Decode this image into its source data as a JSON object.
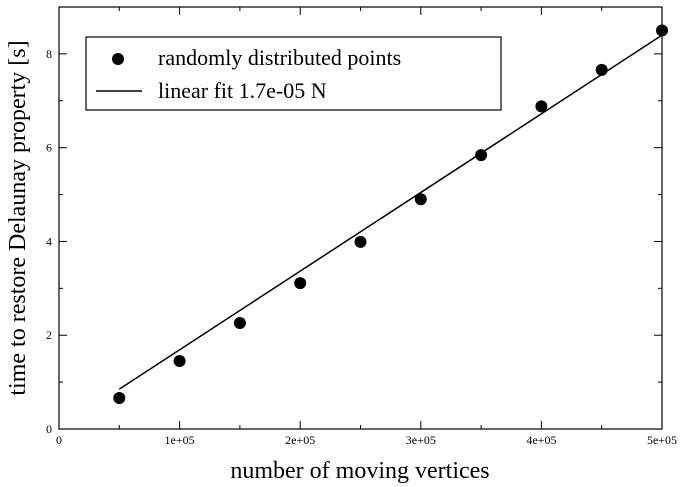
{
  "chart_data": {
    "type": "scatter",
    "xlabel": "number of moving vertices",
    "ylabel": "time to restore Delaunay property [s]",
    "xlim": [
      0,
      500000
    ],
    "ylim": [
      0,
      9
    ],
    "x_ticks": [
      0,
      100000,
      200000,
      300000,
      400000,
      500000
    ],
    "x_tick_labels": [
      "0",
      "1e+05",
      "2e+05",
      "3e+05",
      "4e+05",
      "5e+05"
    ],
    "y_ticks": [
      0,
      2,
      4,
      6,
      8
    ],
    "y_tick_labels": [
      "0",
      "2",
      "4",
      "6",
      "8"
    ],
    "grid": false,
    "legend_position": "top-left",
    "series": [
      {
        "name": "randomly distributed points",
        "kind": "scatter",
        "color": "#000000",
        "x": [
          50000,
          100000,
          150000,
          200000,
          250000,
          300000,
          350000,
          400000,
          450000,
          500000
        ],
        "y": [
          0.66,
          1.45,
          2.26,
          3.11,
          3.99,
          4.9,
          5.84,
          6.88,
          7.66,
          8.5
        ]
      },
      {
        "name": "linear fit 1.7e-05 N",
        "kind": "line",
        "color": "#000000",
        "x": [
          50000,
          500000
        ],
        "y": [
          0.85,
          8.4
        ]
      }
    ]
  }
}
